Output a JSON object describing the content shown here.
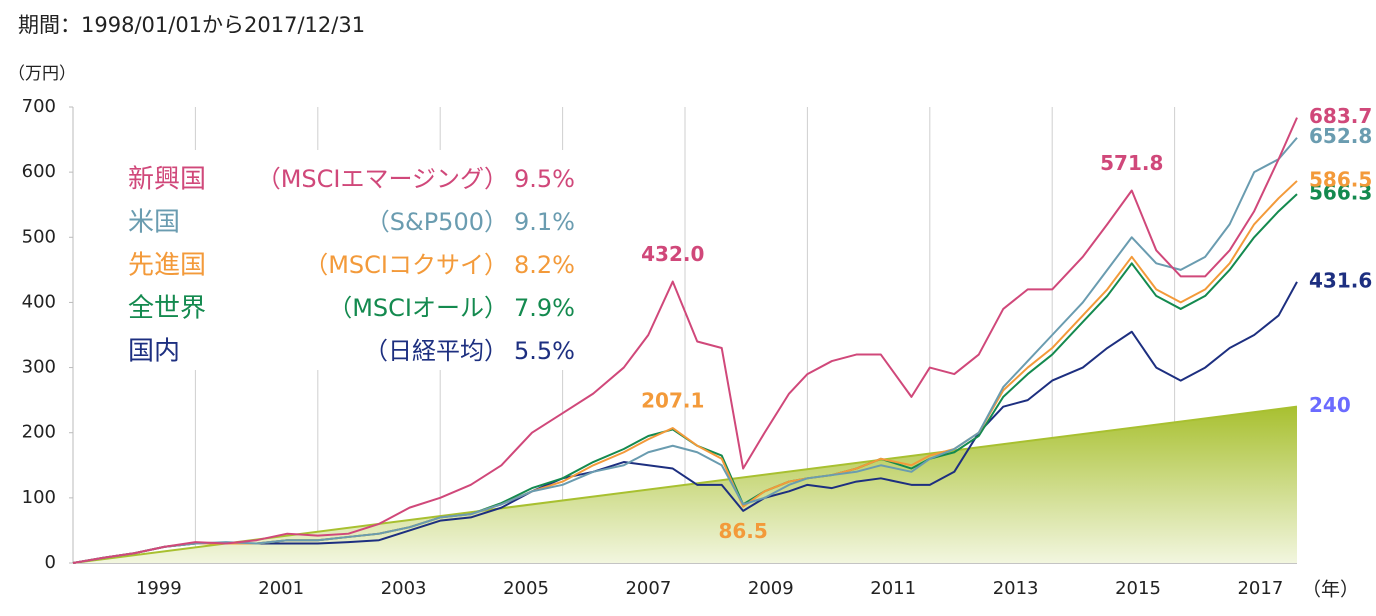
{
  "chart_data": {
    "type": "line",
    "title": "期間：1998/01/01から2017/12/31",
    "y_label": "（万円）",
    "x_label": "（年）",
    "xlim": [
      1998,
      2018
    ],
    "ylim": [
      0,
      700
    ],
    "yticks": [
      0,
      100,
      200,
      300,
      400,
      500,
      600,
      700
    ],
    "xticks": [
      {
        "value": 1999.5,
        "label": "1999"
      },
      {
        "value": 2001.5,
        "label": "2001"
      },
      {
        "value": 2003.5,
        "label": "2003"
      },
      {
        "value": 2005.5,
        "label": "2005"
      },
      {
        "value": 2007.5,
        "label": "2007"
      },
      {
        "value": 2009.5,
        "label": "2009"
      },
      {
        "value": 2011.5,
        "label": "2011"
      },
      {
        "value": 2013.5,
        "label": "2013"
      },
      {
        "value": 2015.5,
        "label": "2015"
      },
      {
        "value": 2017.5,
        "label": "2017"
      }
    ],
    "xgrid": [
      2000,
      2002,
      2004,
      2006,
      2008,
      2010,
      2012,
      2014,
      2016
    ],
    "x": [
      1998.0,
      1998.5,
      1999.0,
      1999.5,
      2000.0,
      2000.5,
      2001.0,
      2001.5,
      2002.0,
      2002.5,
      2003.0,
      2003.5,
      2004.0,
      2004.5,
      2005.0,
      2005.5,
      2006.0,
      2006.5,
      2007.0,
      2007.4,
      2007.8,
      2008.2,
      2008.6,
      2008.95,
      2009.3,
      2009.7,
      2010.0,
      2010.4,
      2010.8,
      2011.2,
      2011.7,
      2012.0,
      2012.4,
      2012.8,
      2013.2,
      2013.6,
      2014.0,
      2014.5,
      2014.9,
      2015.3,
      2015.7,
      2016.1,
      2016.5,
      2016.9,
      2017.3,
      2017.7,
      2018.0
    ],
    "series": [
      {
        "name": "新興国",
        "index": "（MSCIエマージング）",
        "return": "9.5%",
        "color": "#d0487a",
        "values": [
          0,
          8,
          15,
          25,
          32,
          30,
          35,
          45,
          42,
          45,
          60,
          85,
          100,
          120,
          150,
          200,
          230,
          260,
          300,
          350,
          432,
          340,
          330,
          145,
          200,
          260,
          290,
          310,
          320,
          320,
          255,
          300,
          290,
          320,
          390,
          420,
          420,
          470,
          520,
          571.8,
          480,
          440,
          440,
          480,
          540,
          620,
          683.7
        ],
        "value_labels": [
          null,
          null,
          null,
          null,
          null,
          null,
          null,
          null,
          null,
          null,
          null,
          null,
          null,
          null,
          null,
          null,
          null,
          null,
          null,
          null,
          "432.0",
          null,
          null,
          null,
          null,
          null,
          null,
          null,
          null,
          null,
          null,
          null,
          null,
          null,
          null,
          null,
          null,
          null,
          null,
          "571.8",
          null,
          null,
          null,
          null,
          null,
          null,
          "683.7"
        ]
      },
      {
        "name": "米国",
        "index": "（S&P500）",
        "return": "9.1%",
        "color": "#6a9cb0",
        "values": [
          0,
          8,
          15,
          25,
          30,
          32,
          30,
          35,
          35,
          40,
          45,
          55,
          70,
          75,
          90,
          110,
          120,
          140,
          150,
          170,
          180,
          170,
          150,
          90,
          100,
          120,
          130,
          135,
          140,
          150,
          140,
          160,
          175,
          200,
          270,
          310,
          350,
          400,
          450,
          500,
          460,
          450,
          470,
          520,
          600,
          620,
          652.8
        ],
        "value_labels": [
          null,
          null,
          null,
          null,
          null,
          null,
          null,
          null,
          null,
          null,
          null,
          null,
          null,
          null,
          null,
          null,
          null,
          null,
          null,
          null,
          null,
          null,
          null,
          null,
          null,
          null,
          null,
          null,
          null,
          null,
          null,
          null,
          null,
          null,
          null,
          null,
          null,
          null,
          null,
          null,
          null,
          null,
          null,
          null,
          null,
          null,
          "652.8"
        ]
      },
      {
        "name": "先進国",
        "index": "（MSCIコクサイ）",
        "return": "8.2%",
        "color": "#f39a3a",
        "values": [
          0,
          8,
          15,
          25,
          30,
          30,
          30,
          35,
          35,
          40,
          45,
          55,
          70,
          75,
          90,
          110,
          125,
          150,
          170,
          190,
          207.1,
          180,
          160,
          86.5,
          110,
          125,
          130,
          135,
          145,
          160,
          150,
          165,
          175,
          200,
          265,
          300,
          330,
          380,
          420,
          470,
          420,
          400,
          420,
          460,
          520,
          560,
          586.5
        ],
        "value_labels": [
          null,
          null,
          null,
          null,
          null,
          null,
          null,
          null,
          null,
          null,
          null,
          null,
          null,
          null,
          null,
          null,
          null,
          null,
          null,
          null,
          "207.1",
          null,
          null,
          "86.5",
          null,
          null,
          null,
          null,
          null,
          null,
          null,
          null,
          null,
          null,
          null,
          null,
          null,
          null,
          null,
          null,
          null,
          null,
          null,
          null,
          null,
          null,
          "586.5"
        ]
      },
      {
        "name": "全世界",
        "index": "（MSCIオール）",
        "return": "7.9%",
        "color": "#148a4f",
        "values": [
          0,
          8,
          15,
          25,
          30,
          30,
          30,
          35,
          35,
          40,
          45,
          55,
          70,
          75,
          92,
          115,
          130,
          155,
          175,
          195,
          205,
          180,
          165,
          90,
          110,
          125,
          130,
          135,
          145,
          160,
          145,
          160,
          170,
          195,
          255,
          290,
          320,
          370,
          410,
          460,
          410,
          390,
          410,
          450,
          500,
          540,
          566.3
        ],
        "value_labels": [
          null,
          null,
          null,
          null,
          null,
          null,
          null,
          null,
          null,
          null,
          null,
          null,
          null,
          null,
          null,
          null,
          null,
          null,
          null,
          null,
          null,
          null,
          null,
          null,
          null,
          null,
          null,
          null,
          null,
          null,
          null,
          null,
          null,
          null,
          null,
          null,
          null,
          null,
          null,
          null,
          null,
          null,
          null,
          null,
          null,
          null,
          "566.3"
        ]
      },
      {
        "name": "国内",
        "index": "（日経平均）",
        "return": "5.5%",
        "color": "#1d2f80",
        "values": [
          0,
          8,
          15,
          25,
          30,
          30,
          30,
          30,
          30,
          32,
          35,
          50,
          65,
          70,
          85,
          110,
          130,
          140,
          155,
          150,
          145,
          120,
          120,
          80,
          100,
          110,
          120,
          115,
          125,
          130,
          120,
          120,
          140,
          200,
          240,
          250,
          280,
          300,
          330,
          355,
          300,
          280,
          300,
          330,
          350,
          380,
          431.6
        ],
        "value_labels": [
          null,
          null,
          null,
          null,
          null,
          null,
          null,
          null,
          null,
          null,
          null,
          null,
          null,
          null,
          null,
          null,
          null,
          null,
          null,
          null,
          null,
          null,
          null,
          null,
          null,
          null,
          null,
          null,
          null,
          null,
          null,
          null,
          null,
          null,
          null,
          null,
          null,
          null,
          null,
          null,
          null,
          null,
          null,
          null,
          null,
          null,
          "431.6"
        ]
      }
    ],
    "principal": {
      "color": "#a8c030",
      "label_color": "#6b6bff",
      "x": [
        1998,
        2018
      ],
      "values": [
        0,
        240
      ],
      "value_labels": [
        null,
        "240"
      ]
    }
  }
}
